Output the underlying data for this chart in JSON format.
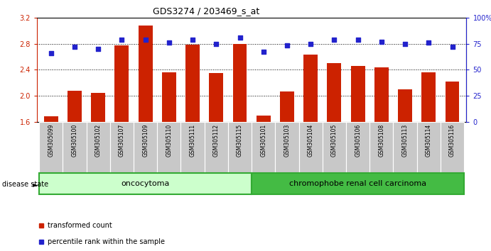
{
  "title": "GDS3274 / 203469_s_at",
  "samples": [
    "GSM305099",
    "GSM305100",
    "GSM305102",
    "GSM305107",
    "GSM305109",
    "GSM305110",
    "GSM305111",
    "GSM305112",
    "GSM305115",
    "GSM305101",
    "GSM305103",
    "GSM305104",
    "GSM305105",
    "GSM305106",
    "GSM305108",
    "GSM305113",
    "GSM305114",
    "GSM305116"
  ],
  "bar_values": [
    1.68,
    2.08,
    2.04,
    2.77,
    3.08,
    2.36,
    2.78,
    2.35,
    2.8,
    1.69,
    2.06,
    2.63,
    2.5,
    2.46,
    2.44,
    2.1,
    2.36,
    2.22
  ],
  "dot_values": [
    66,
    72,
    70,
    79,
    79,
    76,
    79,
    75,
    81,
    67,
    73,
    75,
    79,
    79,
    77,
    75,
    76,
    72
  ],
  "ylim_left": [
    1.6,
    3.2
  ],
  "ylim_right": [
    0,
    100
  ],
  "yticks_left": [
    1.6,
    2.0,
    2.4,
    2.8,
    3.2
  ],
  "yticks_right": [
    0,
    25,
    50,
    75,
    100
  ],
  "ytick_labels_right": [
    "0",
    "25",
    "50",
    "75",
    "100%"
  ],
  "bar_color": "#cc2200",
  "dot_color": "#2222cc",
  "oncocytoma_count": 9,
  "chromophobe_count": 9,
  "group1_label": "oncocytoma",
  "group2_label": "chromophobe renal cell carcinoma",
  "group1_color": "#ccffcc",
  "group2_color": "#44bb44",
  "disease_state_label": "disease state",
  "legend_bar_label": "transformed count",
  "legend_dot_label": "percentile rank within the sample",
  "background_color": "#ffffff",
  "tick_label_bg": "#c8c8c8"
}
